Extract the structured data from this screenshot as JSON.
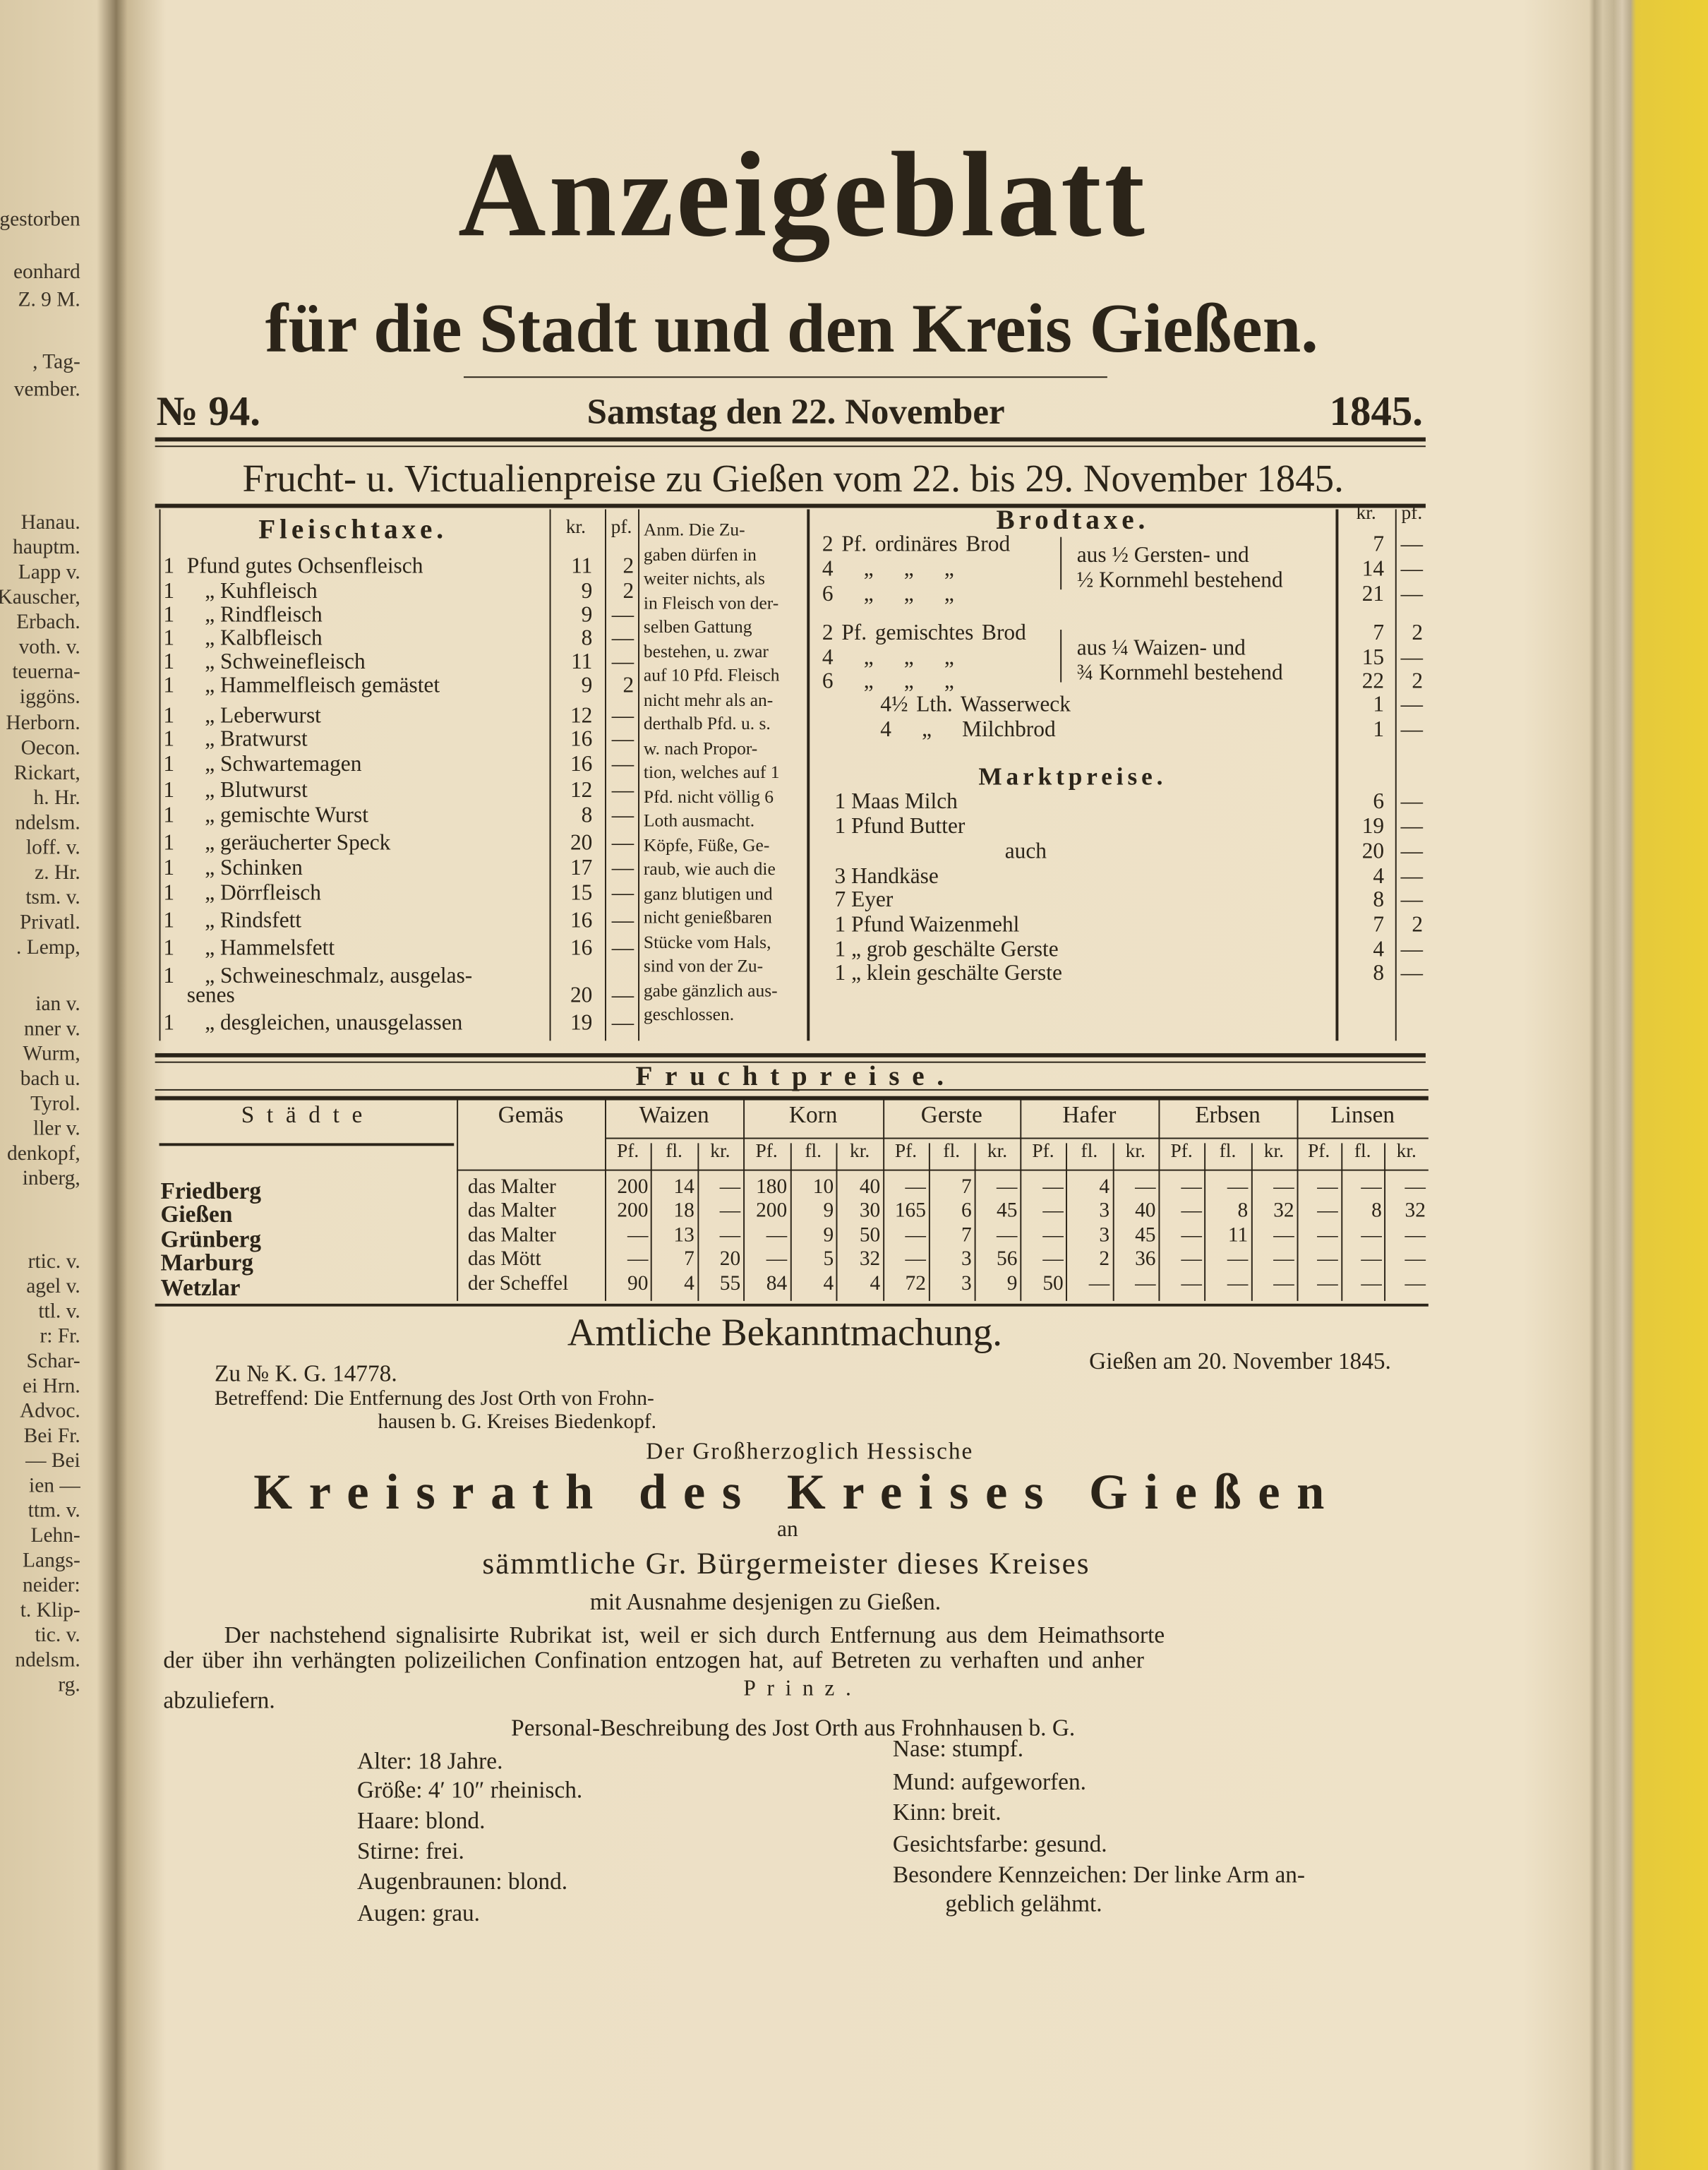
{
  "header": {
    "title": "Anzeigeblatt",
    "subtitle": "für die Stadt und den Kreis Gießen.",
    "number": "№ 94.",
    "date": "Samstag den 22. November",
    "year": "1845."
  },
  "prices_title": "Frucht- u. Victualienpreise zu Gießen vom 22. bis 29. November 1845.",
  "fleischtaxe": {
    "heading": "Fleischtaxe.",
    "columns": [
      "kr.",
      "pf."
    ],
    "rows": [
      [
        "1",
        "Pfund gutes Ochsenfleisch",
        "11",
        "2"
      ],
      [
        "1",
        "„ Kuhfleisch",
        "9",
        "2"
      ],
      [
        "1",
        "„ Rindfleisch",
        "9",
        "—"
      ],
      [
        "1",
        "„ Kalbfleisch",
        "8",
        "—"
      ],
      [
        "1",
        "„ Schweinefleisch",
        "11",
        "—"
      ],
      [
        "1",
        "„ Hammelfleisch gemästet",
        "9",
        "2"
      ],
      [
        "1",
        "„ Leberwurst",
        "12",
        "—"
      ],
      [
        "1",
        "„ Bratwurst",
        "16",
        "—"
      ],
      [
        "1",
        "„ Schwartemagen",
        "16",
        "—"
      ],
      [
        "1",
        "„ Blutwurst",
        "12",
        "—"
      ],
      [
        "1",
        "„ gemischte Wurst",
        "8",
        "—"
      ],
      [
        "1",
        "„ geräucherter Speck",
        "20",
        "—"
      ],
      [
        "1",
        "„ Schinken",
        "17",
        "—"
      ],
      [
        "1",
        "„ Dörrfleisch",
        "15",
        "—"
      ],
      [
        "1",
        "„ Rindsfett",
        "16",
        "—"
      ],
      [
        "1",
        "„ Hammelsfett",
        "16",
        "—"
      ],
      [
        "1",
        "„ Schweineschmalz, ausgelas-",
        "",
        ""
      ],
      [
        "",
        "senes",
        "20",
        "—"
      ],
      [
        "1",
        "„ desgleichen, unausgelassen",
        "19",
        "—"
      ]
    ],
    "note": [
      "Anm. Die Zu-",
      "gaben dürfen in",
      "weiter nichts, als",
      "in Fleisch von der-",
      "selben Gattung",
      "bestehen, u. zwar",
      "auf 10 Pfd. Fleisch",
      "nicht mehr als an-",
      "derthalb Pfd. u. s.",
      "w. nach Propor-",
      "tion, welches auf 1",
      "Pfd. nicht völlig 6",
      "Loth ausmacht.",
      "Köpfe, Füße, Ge-",
      "raub, wie auch die",
      "ganz blutigen und",
      "nicht genießbaren",
      "Stücke vom Hals,",
      "sind von der Zu-",
      "gabe gänzlich aus-",
      "geschlossen."
    ]
  },
  "brodtaxe": {
    "heading": "Brodtaxe.",
    "columns": [
      "kr.",
      "pf."
    ],
    "rows": [
      [
        "2 Pf. ordinäres Brod",
        "7",
        "—"
      ],
      [
        "4 „ „ „",
        "14",
        "—"
      ],
      [
        "6 „ „ „",
        "21",
        "—"
      ],
      [
        "2 Pf. gemischtes Brod",
        "7",
        "2"
      ],
      [
        "4 „ „ „",
        "15",
        "—"
      ],
      [
        "6 „ „ „",
        "22",
        "2"
      ],
      [
        "4½ Lth. Wasserweck",
        "1",
        "—"
      ],
      [
        "4 „ Milchbrod",
        "1",
        "—"
      ]
    ],
    "notes": [
      [
        "aus ½ Gersten- und",
        "½ Kornmehl bestehend"
      ],
      [
        "aus ¼ Waizen- und",
        "¾ Kornmehl bestehend"
      ]
    ]
  },
  "marktpreise": {
    "heading": "Marktpreise.",
    "rows": [
      [
        "1 Maas Milch",
        "6",
        "—"
      ],
      [
        "1 Pfund Butter",
        "19",
        "—"
      ],
      [
        "auch",
        "20",
        "—"
      ],
      [
        "3 Handkäse",
        "4",
        "—"
      ],
      [
        "7 Eyer",
        "8",
        "—"
      ],
      [
        "1 Pfund Waizenmehl",
        "7",
        "2"
      ],
      [
        "1 „ grob geschälte Gerste",
        "4",
        "—"
      ],
      [
        "1 „ klein geschälte Gerste",
        "8",
        "—"
      ]
    ]
  },
  "fruchtpreise": {
    "heading": "Fruchtpreise.",
    "columns": [
      "Städte",
      "Gemäs",
      "Waizen",
      "Korn",
      "Gerste",
      "Hafer",
      "Erbsen",
      "Linsen"
    ],
    "subcolumns": [
      "Pf.",
      "fl.",
      "kr."
    ],
    "rows": [
      [
        "Friedberg",
        "das Malter",
        "200",
        "14",
        "—",
        "180",
        "10",
        "40",
        "—",
        "7",
        "—",
        "—",
        "4",
        "—",
        "—",
        "—",
        "—",
        "—",
        "—",
        "—"
      ],
      [
        "Gießen",
        "das Malter",
        "200",
        "18",
        "—",
        "200",
        "9",
        "30",
        "165",
        "6",
        "45",
        "—",
        "3",
        "40",
        "—",
        "8",
        "32",
        "—",
        "8",
        "32"
      ],
      [
        "Grünberg",
        "das Malter",
        "—",
        "13",
        "—",
        "—",
        "9",
        "50",
        "—",
        "7",
        "—",
        "—",
        "3",
        "45",
        "—",
        "11",
        "—",
        "—",
        "—",
        "—"
      ],
      [
        "Marburg",
        "das Mött",
        "—",
        "7",
        "20",
        "—",
        "5",
        "32",
        "—",
        "3",
        "56",
        "—",
        "2",
        "36",
        "—",
        "—",
        "—",
        "—",
        "—",
        "—"
      ],
      [
        "Wetzlar",
        "der Scheffel",
        "90",
        "4",
        "55",
        "84",
        "4",
        "4",
        "72",
        "3",
        "9",
        "50",
        "—",
        "—",
        "—",
        "—",
        "—",
        "—",
        "—",
        "—"
      ]
    ]
  },
  "notice": {
    "heading": "Amtliche Bekanntmachung.",
    "reference": "Zu № K. G. 14778.",
    "place_date": "Gießen am 20. November 1845.",
    "subject": [
      "Betreffend: Die Entfernung des Jost Orth von Frohn-",
      "hausen b. G. Kreises Biedenkopf."
    ],
    "sender_1": "Der Großherzoglich Hessische",
    "sender_2": "Kreisrath des Kreises Gießen",
    "to": "an",
    "recipients": "sämmtliche Gr. Bürgermeister dieses Kreises",
    "exception": "mit Ausnahme desjenigen zu Gießen.",
    "body": [
      "Der nachstehend signalisirte Rubrikat ist, weil er sich durch Entfernung aus dem Heimathsorte",
      "der über ihn verhängten polizeilichen Confination entzogen hat, auf Betreten zu verhaften und anher",
      "abzuliefern."
    ],
    "signature": "Prinz.",
    "description_title": "Personal-Beschreibung des Jost Orth aus Frohnhausen b. G.",
    "description_left": [
      "Alter: 18 Jahre.",
      "Größe: 4′ 10″ rheinisch.",
      "Haare: blond.",
      "Stirne: frei.",
      "Augenbraunen: blond.",
      "Augen: grau."
    ],
    "description_right": [
      "Nase: stumpf.",
      "Mund: aufgeworfen.",
      "Kinn: breit.",
      "Gesichtsfarbe: gesund.",
      "Besondere Kennzeichen: Der linke Arm an-",
      "geblich gelähmt."
    ]
  },
  "facing_page": [
    "gestorben",
    "eonhard",
    "Z. 9 M.",
    ", Tag-",
    "vember.",
    "Hanau.",
    "hauptm.",
    "Lapp v.",
    "Kauscher,",
    "Erbach.",
    "voth. v.",
    "teuerna-",
    "iggöns.",
    "Herborn.",
    "Oecon.",
    "Rickart,",
    "h. Hr.",
    "ndelsm.",
    "loff. v.",
    "z. Hr.",
    "tsm. v.",
    "Privatl.",
    ". Lemp,",
    "ian v.",
    "nner v.",
    "Wurm,",
    "bach u.",
    "Tyrol.",
    "ller v.",
    "denkopf,",
    "inberg,",
    "rtic. v.",
    "agel v.",
    "ttl. v.",
    "r: Fr.",
    "Schar-",
    "ei Hrn.",
    "Advoc.",
    "Bei Fr.",
    "— Bei",
    "ien —",
    "ttm. v.",
    "Lehn-",
    "Langs-",
    "neider:",
    "t. Klip-",
    "tic. v.",
    "ndelsm.",
    "rg."
  ]
}
